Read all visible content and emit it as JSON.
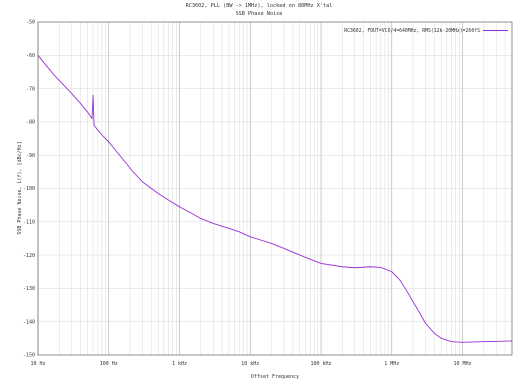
{
  "chart_data": {
    "type": "line",
    "title": "RC3602, PLL (BW -> 1MHz), locked on 80MHz X'tal",
    "subtitle": "SSB Phase Noise",
    "xlabel": "Offset Frequency",
    "ylabel": "SSB Phase Noise, L(f), [dBc/Hz]",
    "x_scale": "log",
    "xlim_hz": [
      10,
      50000000
    ],
    "ylim": [
      -150,
      -50
    ],
    "grid": true,
    "legend_position": "top-right",
    "x_ticks": [
      {
        "value": 10,
        "label": "10 Hz"
      },
      {
        "value": 100,
        "label": "100 Hz"
      },
      {
        "value": 1000,
        "label": "1 kHz"
      },
      {
        "value": 10000,
        "label": "10 kHz"
      },
      {
        "value": 100000,
        "label": "100 kHz"
      },
      {
        "value": 1000000,
        "label": "1 MHz"
      },
      {
        "value": 10000000,
        "label": "10 MHz"
      }
    ],
    "y_ticks": [
      -50,
      -60,
      -70,
      -80,
      -90,
      -100,
      -110,
      -120,
      -130,
      -140,
      -150
    ],
    "series": [
      {
        "name": "RC3602, FOUT=VCO/4=640MHz, RMS(12k-20MHz)=260fS",
        "color": "#9b30d8",
        "points": [
          [
            10,
            -60
          ],
          [
            13,
            -63
          ],
          [
            17,
            -66
          ],
          [
            22,
            -68.5
          ],
          [
            30,
            -71.5
          ],
          [
            40,
            -74.5
          ],
          [
            50,
            -77
          ],
          [
            58,
            -79
          ],
          [
            60,
            -72
          ],
          [
            62,
            -81
          ],
          [
            70,
            -82.5
          ],
          [
            85,
            -84.5
          ],
          [
            100,
            -86
          ],
          [
            130,
            -89
          ],
          [
            170,
            -92
          ],
          [
            220,
            -95
          ],
          [
            300,
            -98
          ],
          [
            400,
            -100
          ],
          [
            500,
            -101.5
          ],
          [
            700,
            -103.5
          ],
          [
            1000,
            -105.5
          ],
          [
            1500,
            -107.5
          ],
          [
            2000,
            -109
          ],
          [
            3000,
            -110.5
          ],
          [
            5000,
            -112
          ],
          [
            7000,
            -113
          ],
          [
            10000,
            -114.5
          ],
          [
            20000,
            -116.5
          ],
          [
            30000,
            -118
          ],
          [
            50000,
            -120
          ],
          [
            100000,
            -122.5
          ],
          [
            200000,
            -123.5
          ],
          [
            300000,
            -123.8
          ],
          [
            500000,
            -123.5
          ],
          [
            700000,
            -123.7
          ],
          [
            1000000,
            -125
          ],
          [
            1300000,
            -127.5
          ],
          [
            1600000,
            -130.5
          ],
          [
            2000000,
            -134
          ],
          [
            2500000,
            -137.5
          ],
          [
            3000000,
            -140.5
          ],
          [
            4000000,
            -143.5
          ],
          [
            5000000,
            -145
          ],
          [
            7000000,
            -146
          ],
          [
            10000000,
            -146.2
          ],
          [
            20000000,
            -146
          ],
          [
            50000000,
            -145.8
          ]
        ]
      }
    ]
  }
}
